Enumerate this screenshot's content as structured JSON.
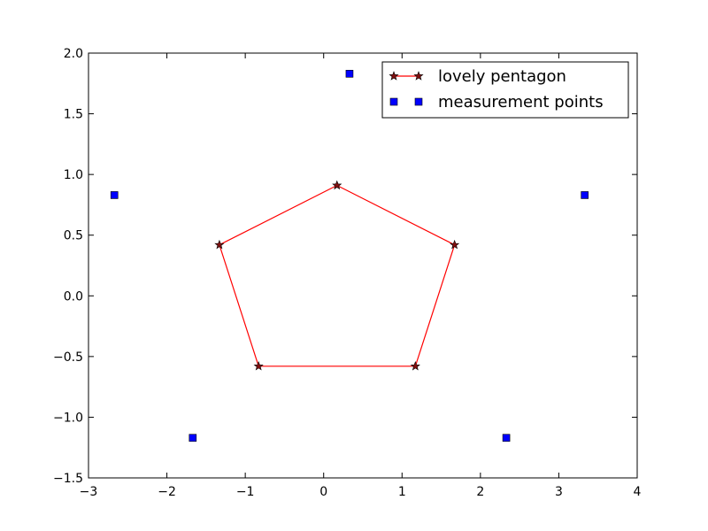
{
  "chart_data": {
    "type": "scatter",
    "title": "",
    "xlabel": "",
    "ylabel": "",
    "xlim": [
      -3,
      4
    ],
    "ylim": [
      -1.5,
      2.0
    ],
    "x_ticks": [
      -3,
      -2,
      -1,
      0,
      1,
      2,
      3,
      4
    ],
    "x_tick_labels": [
      "−3",
      "−2",
      "−1",
      "0",
      "1",
      "2",
      "3",
      "4"
    ],
    "y_ticks": [
      -1.5,
      -1.0,
      -0.5,
      0.0,
      0.5,
      1.0,
      1.5,
      2.0
    ],
    "y_tick_labels": [
      "−1.5",
      "−1.0",
      "−0.5",
      "0.0",
      "0.5",
      "1.0",
      "1.5",
      "2.0"
    ],
    "grid": false,
    "legend_position": "top-right",
    "series": [
      {
        "name": "lovely pentagon",
        "kind": "line",
        "marker": "star",
        "color": "#ff0000",
        "marker_color": "#7f1010",
        "closed": true,
        "x": [
          0.17,
          1.67,
          1.17,
          -0.83,
          -1.33
        ],
        "y": [
          0.91,
          0.42,
          -0.58,
          -0.58,
          0.42
        ]
      },
      {
        "name": "measurement points",
        "kind": "scatter",
        "marker": "square",
        "color": "#0000ff",
        "x": [
          0.33,
          3.33,
          2.33,
          -1.67,
          -2.67
        ],
        "y": [
          1.83,
          0.83,
          -1.17,
          -1.17,
          0.83
        ]
      }
    ]
  }
}
